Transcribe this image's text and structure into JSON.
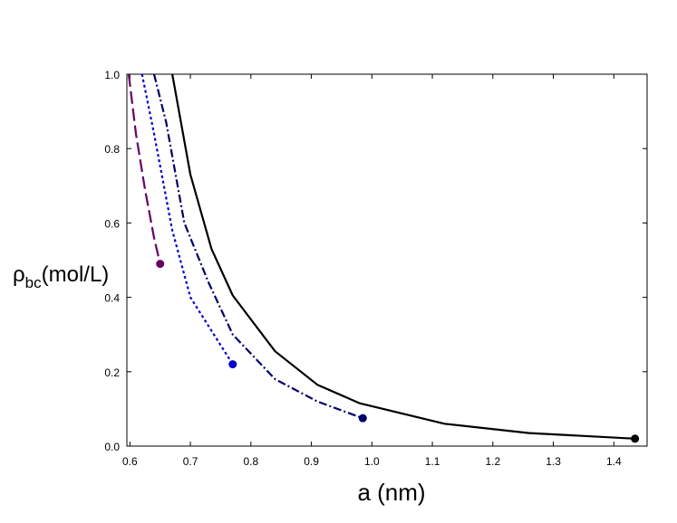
{
  "chart_data": {
    "type": "line",
    "xlabel": "a (nm)",
    "ylabel_main": "ρ",
    "ylabel_sub": "bc",
    "ylabel_rest": "(mol/L)",
    "xlim": [
      0.595,
      1.455
    ],
    "ylim": [
      0.0,
      1.0
    ],
    "xticks": [
      0.6,
      0.7,
      0.8,
      0.9,
      1.0,
      1.1,
      1.2,
      1.3,
      1.4
    ],
    "xtick_labels": [
      "0.6",
      "0.7",
      "0.8",
      "0.9",
      "1.0",
      "1.1",
      "1.2",
      "1.3",
      "1.4"
    ],
    "yticks": [
      0.0,
      0.2,
      0.4,
      0.6,
      0.8,
      1.0
    ],
    "ytick_labels": [
      "0.0",
      "0.2",
      "0.4",
      "0.6",
      "0.8",
      "1.0"
    ],
    "grid": false,
    "series": [
      {
        "color": "#000000",
        "dash": "solid",
        "x": [
          0.67,
          0.7,
          0.735,
          0.77,
          0.84,
          0.91,
          0.98,
          1.12,
          1.26,
          1.435
        ],
        "y": [
          1.0,
          0.73,
          0.53,
          0.405,
          0.255,
          0.165,
          0.115,
          0.06,
          0.035,
          0.02
        ],
        "endpoint": [
          1.435,
          0.02
        ]
      },
      {
        "color": "#000066",
        "dash": "dashdot",
        "x": [
          0.64,
          0.66,
          0.69,
          0.73,
          0.77,
          0.84,
          0.91,
          0.985
        ],
        "y": [
          1.0,
          0.87,
          0.6,
          0.44,
          0.3,
          0.18,
          0.12,
          0.075
        ],
        "endpoint": [
          0.985,
          0.075
        ]
      },
      {
        "color": "#0000cc",
        "dash": "dotted",
        "x": [
          0.62,
          0.64,
          0.67,
          0.7,
          0.735,
          0.77
        ],
        "y": [
          1.0,
          0.84,
          0.58,
          0.4,
          0.31,
          0.22
        ],
        "endpoint": [
          0.77,
          0.22
        ]
      },
      {
        "color": "#660066",
        "dash": "longdash",
        "x": [
          0.598,
          0.61,
          0.625,
          0.64,
          0.65
        ],
        "y": [
          1.0,
          0.84,
          0.69,
          0.56,
          0.49
        ],
        "endpoint": [
          0.65,
          0.49
        ]
      }
    ]
  }
}
